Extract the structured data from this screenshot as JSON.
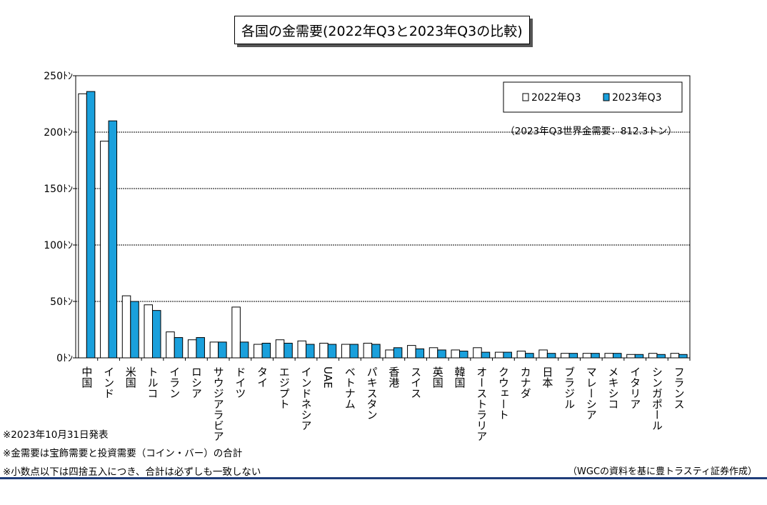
{
  "title": "各国の金需要(2022年Q3と2023年Q3の比較)",
  "annotation": "（2023年Q3世界金需要：812.3トン）",
  "notes": [
    "※2023年10月31日発表",
    "※金需要は宝飾需要と投資需要（コイン・バー）の合計",
    "※小数点以下は四捨五入につき、合計は必ずしも一致しない"
  ],
  "source": "（WGCの資料を基に豊トラスティ証券作成）",
  "colors": {
    "series1": "#ffffff",
    "series2": "#1aa0dc",
    "border": "#000000",
    "rule": "#1f3d7a"
  },
  "chart_data": {
    "type": "bar",
    "title": "各国の金需要(2022年Q3と2023年Q3の比較)",
    "xlabel": "",
    "ylabel": "",
    "ylim": [
      0,
      250
    ],
    "yticks": [
      0,
      50,
      100,
      150,
      200,
      250
    ],
    "ytick_labels": [
      "0ﾄﾝ",
      "50ﾄﾝ",
      "100ﾄﾝ",
      "150ﾄﾝ",
      "200ﾄﾝ",
      "250ﾄﾝ"
    ],
    "grid": true,
    "legend": "top-right",
    "categories": [
      "中国",
      "インド",
      "米国",
      "トルコ",
      "イラン",
      "ロシア",
      "サウジアラビア",
      "ドイツ",
      "タイ",
      "エジプト",
      "インドネシア",
      "UAE",
      "ベトナム",
      "パキスタン",
      "香港",
      "スイス",
      "英国",
      "韓国",
      "オーストラリア",
      "クウェート",
      "カナダ",
      "日本",
      "ブラジル",
      "マレーシア",
      "メキシコ",
      "イタリア",
      "シンガポール",
      "フランス"
    ],
    "series": [
      {
        "name": "2022年Q3",
        "values": [
          234,
          192,
          55,
          47,
          23,
          16,
          14,
          45,
          12,
          16,
          15,
          13,
          12,
          13,
          7,
          11,
          9,
          7,
          9,
          5,
          6,
          7,
          4,
          4,
          4,
          3,
          4,
          4
        ]
      },
      {
        "name": "2023年Q3",
        "values": [
          236,
          210,
          50,
          42,
          18,
          18,
          14,
          14,
          13,
          13,
          12,
          12,
          12,
          12,
          9,
          8,
          7,
          6,
          5,
          5,
          4,
          4,
          4,
          4,
          4,
          3,
          3,
          3
        ]
      }
    ]
  }
}
